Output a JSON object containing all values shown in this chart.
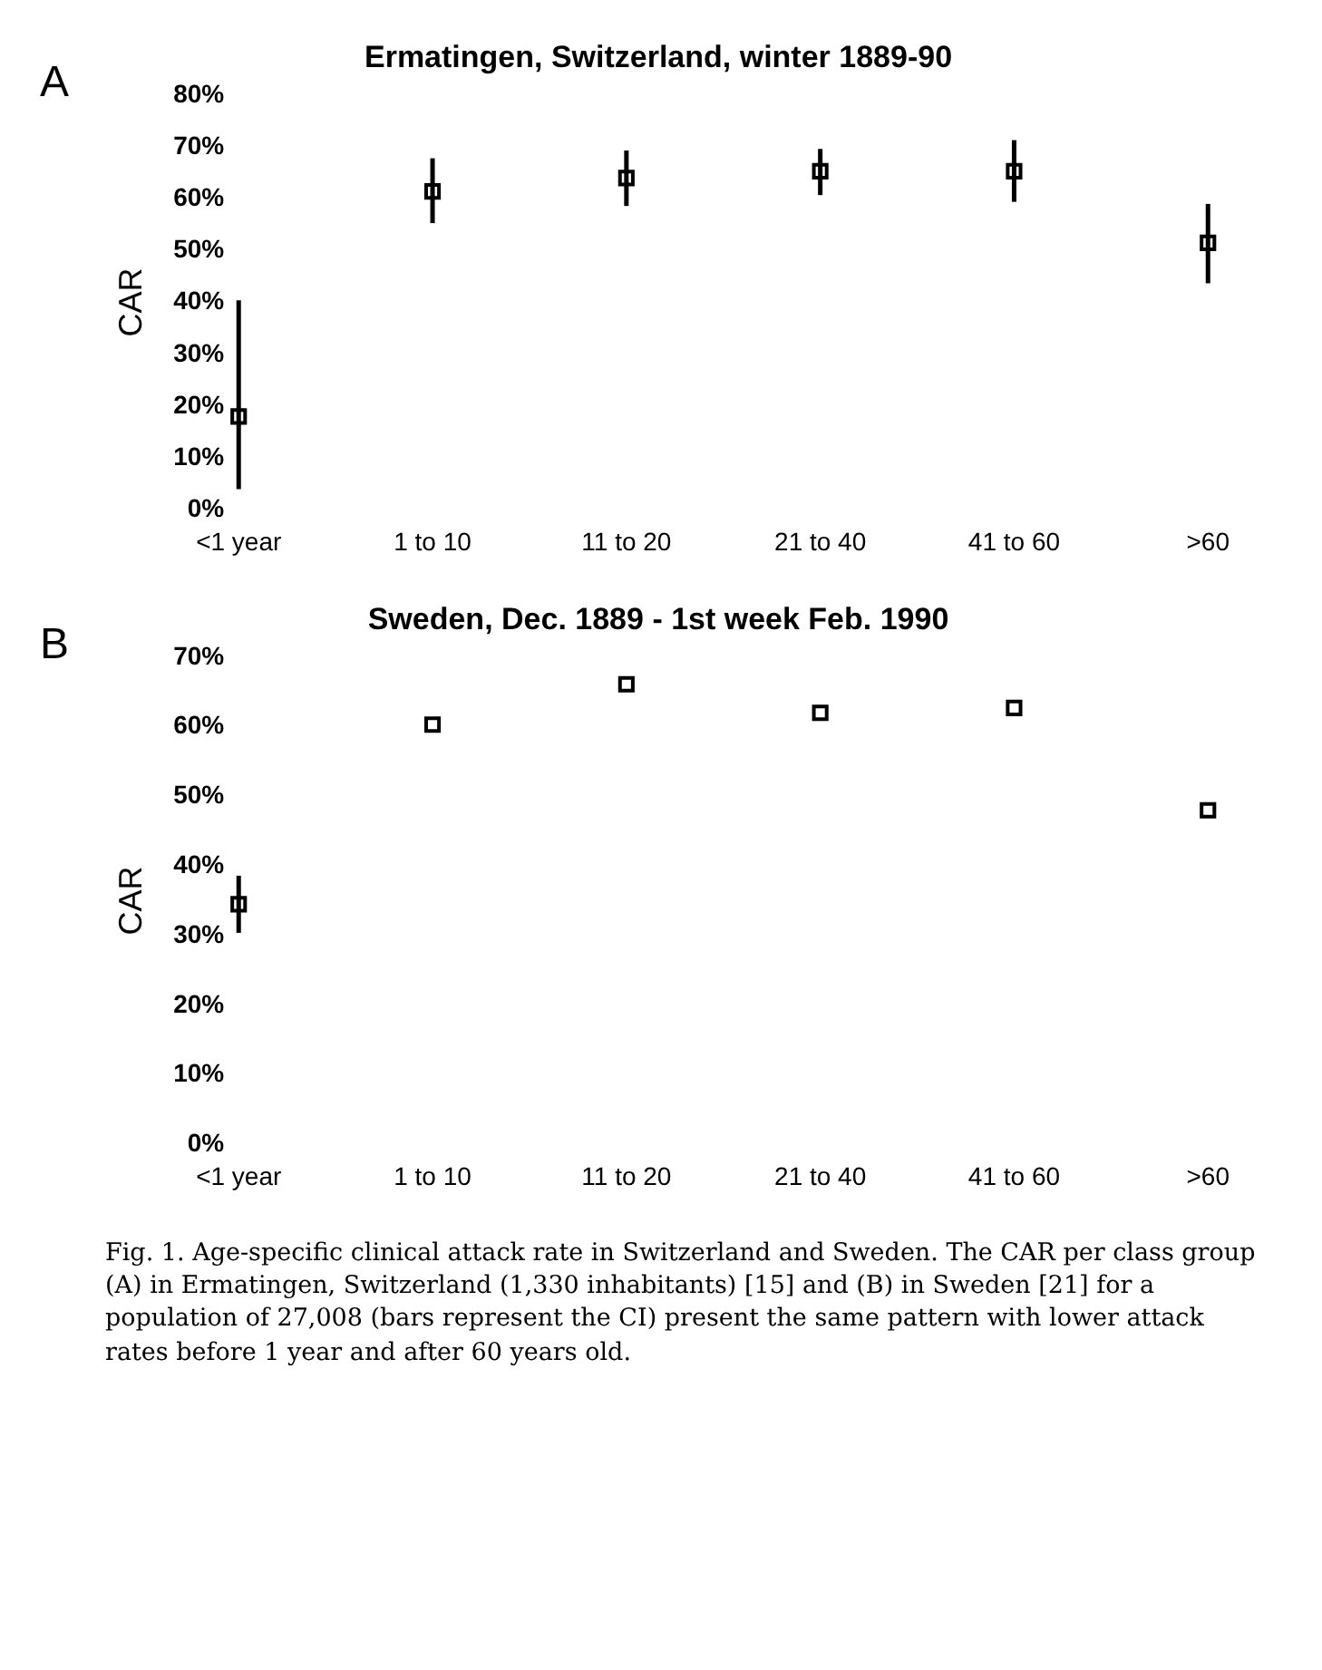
{
  "chart_data": [
    {
      "type": "scatter",
      "title": "Ermatingen, Switzerland, winter 1889-90",
      "ylabel": "CAR",
      "annotations": [
        "A"
      ],
      "categories": [
        "<1 year",
        "1 to 10",
        "11 to 20",
        "21 to 40",
        "41 to 60",
        ">60"
      ],
      "values": [
        18,
        61.4,
        64,
        65.3,
        65.3,
        51.5
      ],
      "errors": [
        [
          4,
          40.4
        ],
        [
          55.3,
          67.8
        ],
        [
          58.6,
          69.3
        ],
        [
          60.7,
          69.6
        ],
        [
          59.4,
          71.3
        ],
        [
          43.7,
          59
        ]
      ],
      "color": "#000000",
      "marker": "square",
      "grid": false,
      "ylim": [
        0,
        80
      ],
      "yticks": [
        {
          "value": 0,
          "label": "0%"
        },
        {
          "value": 10,
          "label": "10%"
        },
        {
          "value": 20,
          "label": "20%"
        },
        {
          "value": 30,
          "label": "30%"
        },
        {
          "value": 40,
          "label": "40%"
        },
        {
          "value": 50,
          "label": "50%"
        },
        {
          "value": 60,
          "label": "60%"
        },
        {
          "value": 70,
          "label": "70%"
        },
        {
          "value": 80,
          "label": "80%"
        }
      ]
    },
    {
      "type": "scatter",
      "title": "Sweden, Dec. 1889 - 1st week Feb. 1990",
      "ylabel": "CAR",
      "annotations": [
        "B",
        "Fig. 1. Age-specific clinical attack rate in Switzerland and Sweden. The CAR per class group (A) in Ermatingen, Switzerland (1,330 inhabitants) [15] and (B) in Sweden [21] for a population of 27,008 (bars represent the CI) present the same pattern with lower attack rates before 1 year and after 60 years old."
      ],
      "categories": [
        "<1 year",
        "1 to 10",
        "11 to 20",
        "21 to 40",
        "41 to 60",
        ">60"
      ],
      "values": [
        34.5,
        60.3,
        66.1,
        62,
        62.7,
        48
      ],
      "errors": [
        [
          30.4,
          38.6
        ],
        null,
        null,
        null,
        null,
        null
      ],
      "color": "#000000",
      "marker": "square",
      "grid": false,
      "ylim": [
        0,
        70
      ],
      "yticks": [
        {
          "value": 0,
          "label": "0%"
        },
        {
          "value": 10,
          "label": "10%"
        },
        {
          "value": 20,
          "label": "20%"
        },
        {
          "value": 30,
          "label": "30%"
        },
        {
          "value": 40,
          "label": "40%"
        },
        {
          "value": 50,
          "label": "50%"
        },
        {
          "value": 60,
          "label": "60%"
        },
        {
          "value": 70,
          "label": "70%"
        }
      ]
    }
  ]
}
